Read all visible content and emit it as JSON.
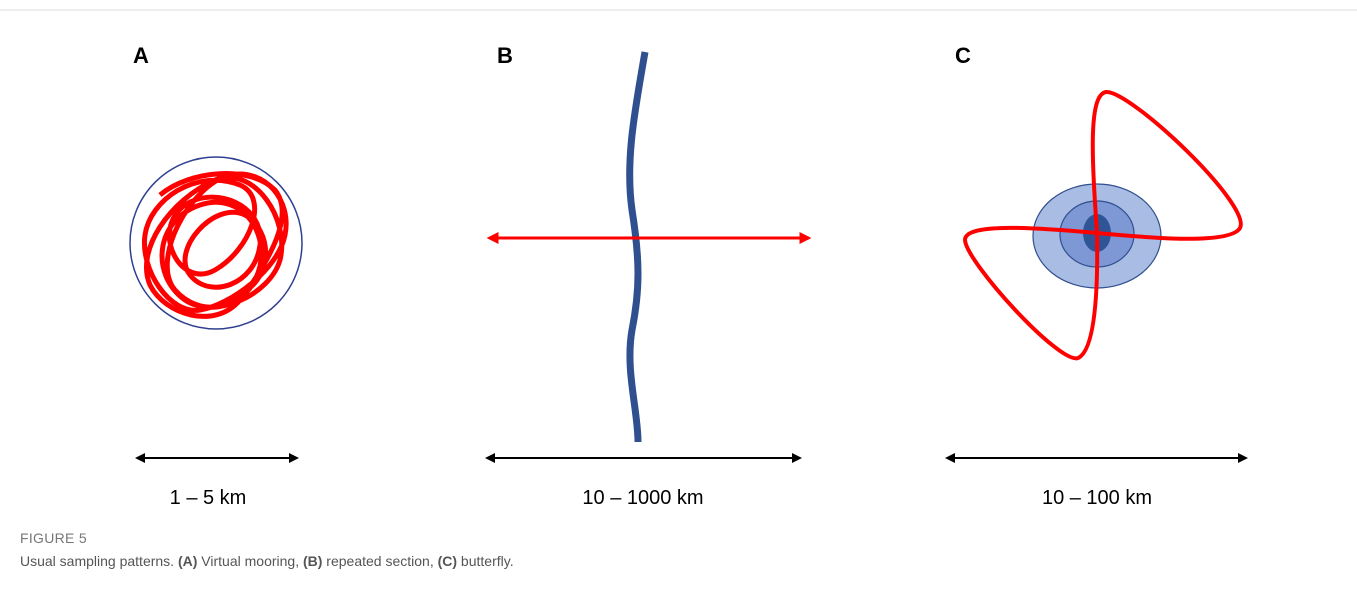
{
  "figure": {
    "panels": [
      {
        "label": "A",
        "scale": "1 – 5 km"
      },
      {
        "label": "B",
        "scale": "10 – 1000 km"
      },
      {
        "label": "C",
        "scale": "10 – 100 km"
      }
    ],
    "caption_label": "FIGURE 5",
    "caption_parts": [
      "Usual sampling patterns. ",
      "(A)",
      " Virtual mooring, ",
      "(B)",
      " repeated section, ",
      "(C)",
      " butterfly."
    ]
  }
}
